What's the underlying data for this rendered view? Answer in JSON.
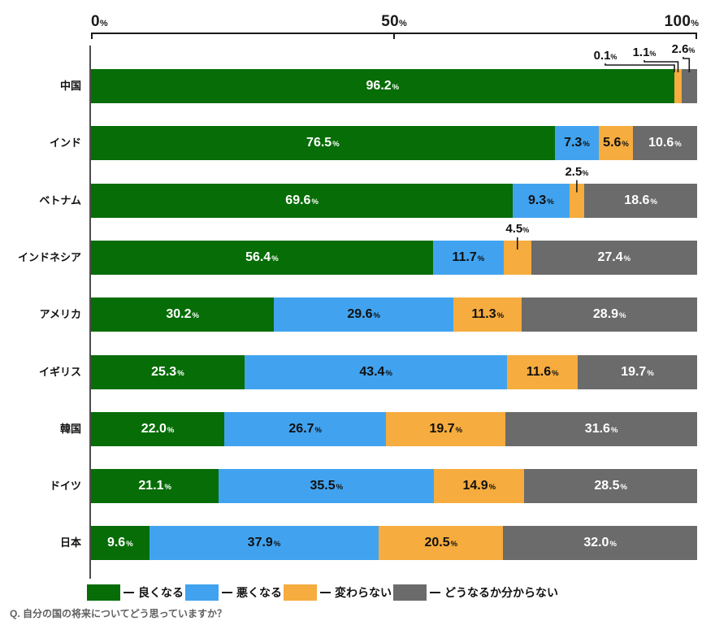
{
  "chart_data": {
    "type": "bar",
    "orientation": "horizontal",
    "stacked": true,
    "value_unit": "%",
    "question": "Q. 自分の国の将来についてどう思っていますか？",
    "x_axis": {
      "ticks": [
        "0",
        "50",
        "100"
      ],
      "suffix": "%",
      "range": [
        0,
        100
      ],
      "position": "top"
    },
    "legend_position": "bottom",
    "series": [
      {
        "key": "better",
        "name": "良くなる",
        "color": "#076D07",
        "text_color": "#FFFFFF"
      },
      {
        "key": "worse",
        "name": "悪くなる",
        "color": "#41A3EF",
        "text_color": "#101010"
      },
      {
        "key": "unchanged",
        "name": "変わらない",
        "color": "#F6AC3E",
        "text_color": "#101010"
      },
      {
        "key": "unknown",
        "name": "どうなるか分からない",
        "color": "#6B6B6B",
        "text_color": "#FFFFFF"
      }
    ],
    "categories": [
      "中国",
      "インド",
      "ベトナム",
      "インドネシア",
      "アメリカ",
      "イギリス",
      "韓国",
      "ドイツ",
      "日本"
    ],
    "rows": [
      {
        "label": "中国",
        "values": [
          96.2,
          0.1,
          1.1,
          2.6
        ],
        "placements": [
          "inside",
          "callout",
          "callout",
          "callout"
        ]
      },
      {
        "label": "インド",
        "values": [
          76.5,
          7.3,
          5.6,
          10.6
        ],
        "placements": [
          "inside",
          "inside",
          "inside",
          "inside"
        ]
      },
      {
        "label": "ベトナム",
        "values": [
          69.6,
          9.3,
          2.5,
          18.6
        ],
        "placements": [
          "inside",
          "inside",
          "callout",
          "inside"
        ]
      },
      {
        "label": "インドネシア",
        "values": [
          56.4,
          11.7,
          4.5,
          27.4
        ],
        "placements": [
          "inside",
          "inside",
          "callout",
          "inside"
        ]
      },
      {
        "label": "アメリカ",
        "values": [
          30.2,
          29.6,
          11.3,
          28.9
        ],
        "placements": [
          "inside",
          "inside",
          "inside",
          "inside"
        ]
      },
      {
        "label": "イギリス",
        "values": [
          25.3,
          43.4,
          11.6,
          19.7
        ],
        "placements": [
          "inside",
          "inside",
          "inside",
          "inside"
        ]
      },
      {
        "label": "韓国",
        "values": [
          22.0,
          26.7,
          19.7,
          31.6
        ],
        "placements": [
          "inside",
          "inside",
          "inside",
          "inside"
        ]
      },
      {
        "label": "ドイツ",
        "values": [
          21.1,
          35.5,
          14.9,
          28.5
        ],
        "placements": [
          "inside",
          "inside",
          "inside",
          "inside"
        ]
      },
      {
        "label": "日本",
        "values": [
          9.6,
          37.9,
          20.5,
          32.0
        ],
        "placements": [
          "inside",
          "inside",
          "inside",
          "inside"
        ]
      }
    ]
  }
}
